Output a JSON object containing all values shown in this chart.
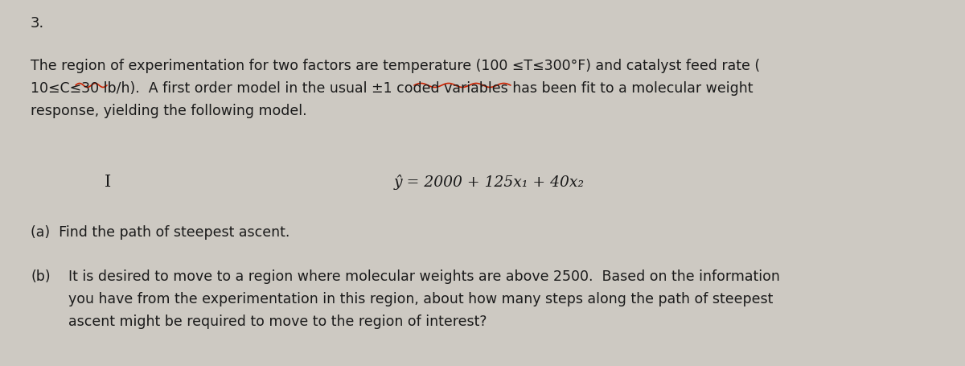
{
  "background_color": "#cdc9c2",
  "number_label": "3.",
  "number_fontsize": 13,
  "para_fontsize": 12.5,
  "eq_fontsize": 13.5,
  "part_a_fontsize": 12.5,
  "part_b_fontsize": 12.5,
  "text_color": "#1a1a1a",
  "underline_color": "#cc2200",
  "paragraph_line1": "The region of experimentation for two factors are temperature (100 ≤T≤300°F) and catalyst feed rate (",
  "paragraph_line2": "10≤C≤30 lb/h).  A first order model in the usual ±1 coded variables has been fit to a molecular weight",
  "paragraph_line3": "response, yielding the following model.",
  "equation_text": "ŷ = 2000 + 125x₁ + 40x₂",
  "part_a_text": "(a)  Find the path of steepest ascent.",
  "part_b_label": "(b)",
  "part_b_line1": "It is desired to move to a region where molecular weights are above 2500.  Based on the information",
  "part_b_line2": "you have from the experimentation in this region, about how many steps along the path of steepest",
  "part_b_line3": "ascent might be required to move to the region of interest?"
}
